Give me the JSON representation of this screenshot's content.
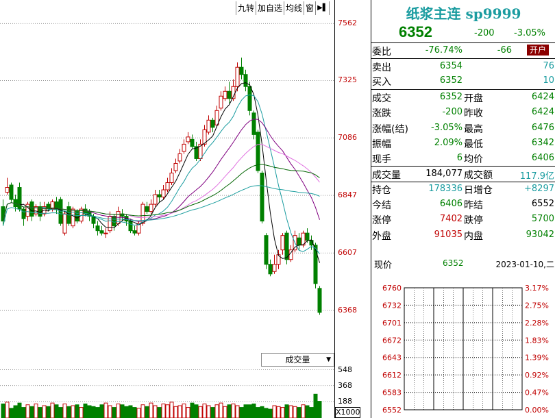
{
  "toolbar": {
    "items": [
      "九转",
      "加自选",
      "均线",
      "窗"
    ],
    "arrow": "▶▌"
  },
  "volume_label": "成交量",
  "volume_unit": "X1000",
  "header": {
    "title": "纸浆主连 sp9999",
    "price": "6352",
    "change": "-200",
    "change_pct": "-3.05%"
  },
  "quote": {
    "weibi": {
      "label": "委比",
      "v1": "-76.74%",
      "v2": "-66",
      "btn": "开户"
    },
    "sell": {
      "label": "卖出",
      "price": "6354",
      "qty": "76"
    },
    "buy": {
      "label": "买入",
      "price": "6352",
      "qty": "10"
    },
    "rows": [
      {
        "l1": "成交",
        "v1": "6352",
        "l2": "开盘",
        "v2": "6424",
        "c1": "g",
        "c2": "g"
      },
      {
        "l1": "涨跌",
        "v1": "-200",
        "l2": "昨收",
        "v2": "6424",
        "c1": "g",
        "c2": "g"
      },
      {
        "l1": "涨幅(结)",
        "v1": "-3.05%",
        "l2": "最高",
        "v2": "6476",
        "c1": "g",
        "c2": "g"
      },
      {
        "l1": "振幅",
        "v1": "2.09%",
        "l2": "最低",
        "v2": "6342",
        "c1": "g",
        "c2": "g"
      },
      {
        "l1": "现手",
        "v1": "6",
        "l2": "均价",
        "v2": "6406",
        "c1": "g",
        "c2": "g"
      },
      {
        "l1": "成交量",
        "v1": "184,077",
        "l2": "成交额",
        "v2": "117.9亿",
        "c1": "k",
        "c2": "b"
      },
      {
        "l1": "持仓",
        "v1": "178336",
        "l2": "日增仓",
        "v2": "+8297",
        "c1": "b",
        "c2": "b"
      },
      {
        "l1": "今结",
        "v1": "6406",
        "l2": "昨结",
        "v2": "6552",
        "c1": "g",
        "c2": "k"
      },
      {
        "l1": "涨停",
        "v1": "7402",
        "l2": "跌停",
        "v2": "5700",
        "c1": "r",
        "c2": "g"
      },
      {
        "l1": "外盘",
        "v1": "91035",
        "l2": "内盘",
        "v2": "93042",
        "c1": "r",
        "c2": "g"
      }
    ],
    "now_label": "现价",
    "now_price": "6352",
    "now_date": "2023-01-10,二"
  },
  "mini_axis": {
    "prices": [
      "6760",
      "6732",
      "6701",
      "6672",
      "6643",
      "6612",
      "6583",
      "6552"
    ],
    "pcts": [
      "3.17%",
      "2.75%",
      "2.28%",
      "1.83%",
      "1.39%",
      "0.92%",
      "0.47%",
      "0.00%"
    ]
  },
  "chart_data": {
    "type": "candlestick",
    "y_ticks": [
      7562,
      7325,
      7086,
      6847,
      6607,
      6368
    ],
    "ylim": [
      6200,
      7660
    ],
    "vol_ticks": [
      548,
      368,
      188
    ],
    "vol_ylim": [
      0,
      560
    ],
    "colors": {
      "up": "#c00000",
      "down": "#008000",
      "ma5": "#000000",
      "ma10": "#1a9ca0",
      "ma20": "#800080",
      "ma40": "#e070e0",
      "ma60": "#006400",
      "ma120": "#20a0a0"
    },
    "candles": [
      [
        6800,
        6740,
        6830,
        6720
      ],
      [
        6860,
        6880,
        6920,
        6850
      ],
      [
        6890,
        6830,
        6900,
        6820
      ],
      [
        6830,
        6800,
        6850,
        6780
      ],
      [
        6880,
        6790,
        6900,
        6780
      ],
      [
        6790,
        6750,
        6800,
        6720
      ],
      [
        6760,
        6810,
        6820,
        6740
      ],
      [
        6820,
        6760,
        6830,
        6740
      ],
      [
        6770,
        6800,
        6810,
        6760
      ],
      [
        6800,
        6760,
        6820,
        6740
      ],
      [
        6770,
        6800,
        6820,
        6760
      ],
      [
        6810,
        6790,
        6820,
        6780
      ],
      [
        6790,
        6820,
        6830,
        6780
      ],
      [
        6820,
        6790,
        6840,
        6770
      ],
      [
        6830,
        6730,
        6840,
        6720
      ],
      [
        6690,
        6770,
        6780,
        6680
      ],
      [
        6800,
        6730,
        6820,
        6720
      ],
      [
        6720,
        6790,
        6800,
        6710
      ],
      [
        6780,
        6740,
        6790,
        6730
      ],
      [
        6740,
        6790,
        6800,
        6730
      ],
      [
        6790,
        6770,
        6810,
        6760
      ],
      [
        6780,
        6760,
        6790,
        6740
      ],
      [
        6760,
        6730,
        6770,
        6710
      ],
      [
        6720,
        6700,
        6740,
        6680
      ],
      [
        6700,
        6690,
        6720,
        6680
      ],
      [
        6690,
        6690,
        6710,
        6670
      ],
      [
        6700,
        6760,
        6780,
        6690
      ],
      [
        6760,
        6720,
        6770,
        6700
      ],
      [
        6730,
        6780,
        6800,
        6720
      ],
      [
        6770,
        6760,
        6790,
        6740
      ],
      [
        6760,
        6740,
        6770,
        6720
      ],
      [
        6740,
        6700,
        6750,
        6690
      ],
      [
        6700,
        6690,
        6720,
        6680
      ],
      [
        6690,
        6730,
        6740,
        6680
      ],
      [
        6730,
        6810,
        6820,
        6720
      ],
      [
        6800,
        6780,
        6820,
        6770
      ],
      [
        6780,
        6810,
        6830,
        6770
      ],
      [
        6810,
        6850,
        6870,
        6800
      ],
      [
        6850,
        6840,
        6870,
        6820
      ],
      [
        6840,
        6870,
        6890,
        6830
      ],
      [
        6870,
        6900,
        6920,
        6860
      ],
      [
        6900,
        6940,
        6960,
        6890
      ],
      [
        6950,
        6980,
        7000,
        6940
      ],
      [
        6990,
        7020,
        7040,
        6980
      ],
      [
        7030,
        7060,
        7080,
        7020
      ],
      [
        7070,
        7090,
        7110,
        7060
      ],
      [
        7080,
        7050,
        7100,
        7040
      ],
      [
        7050,
        7000,
        7070,
        6990
      ],
      [
        7000,
        7060,
        7080,
        6990
      ],
      [
        7060,
        7120,
        7140,
        7050
      ],
      [
        7110,
        7160,
        7180,
        7100
      ],
      [
        7160,
        7130,
        7170,
        7110
      ],
      [
        7140,
        7200,
        7220,
        7130
      ],
      [
        7210,
        7260,
        7280,
        7200
      ],
      [
        7250,
        7280,
        7300,
        7240
      ],
      [
        7280,
        7250,
        7320,
        7230
      ],
      [
        7250,
        7300,
        7330,
        7240
      ],
      [
        7300,
        7380,
        7400,
        7280
      ],
      [
        7380,
        7350,
        7420,
        7330
      ],
      [
        7350,
        7300,
        7370,
        7280
      ],
      [
        7300,
        7200,
        7320,
        7180
      ],
      [
        7190,
        7100,
        7200,
        7080
      ],
      [
        7110,
        6950,
        7120,
        6940
      ],
      [
        6940,
        6740,
        6950,
        6730
      ],
      [
        6680,
        6560,
        6690,
        6540
      ],
      [
        6560,
        6520,
        6580,
        6510
      ],
      [
        6530,
        6560,
        6600,
        6520
      ],
      [
        6560,
        6600,
        6620,
        6540
      ],
      [
        6620,
        6680,
        6690,
        6600
      ],
      [
        6690,
        6580,
        6700,
        6560
      ],
      [
        6580,
        6620,
        6640,
        6570
      ],
      [
        6620,
        6680,
        6700,
        6610
      ],
      [
        6670,
        6640,
        6690,
        6620
      ],
      [
        6640,
        6690,
        6700,
        6630
      ],
      [
        6690,
        6660,
        6710,
        6650
      ],
      [
        6660,
        6640,
        6680,
        6620
      ],
      [
        6640,
        6480,
        6650,
        6460
      ],
      [
        6460,
        6360,
        6470,
        6350
      ]
    ],
    "volumes": [
      160,
      180,
      110,
      140,
      170,
      120,
      150,
      130,
      160,
      120,
      140,
      130,
      170,
      150,
      120,
      160,
      130,
      140,
      150,
      120,
      160,
      140,
      130,
      120,
      150,
      170,
      140,
      120,
      160,
      150,
      130,
      140,
      120,
      110,
      150,
      130,
      170,
      140,
      120,
      160,
      150,
      180,
      130,
      140,
      160,
      120,
      170,
      150,
      130,
      160,
      140,
      120,
      150,
      170,
      130,
      150,
      160,
      140,
      120,
      150,
      150,
      160,
      120,
      130,
      110,
      100,
      140,
      130,
      120,
      150,
      140,
      130,
      120,
      150,
      140,
      120,
      270,
      190
    ]
  }
}
